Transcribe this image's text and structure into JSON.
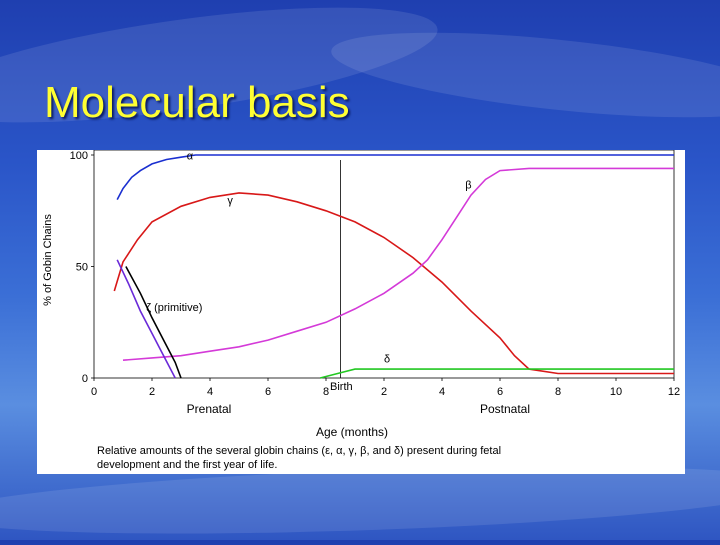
{
  "slide": {
    "title": "Molecular basis"
  },
  "chart_data": {
    "type": "line",
    "xlabel": "Age (months)",
    "ylabel": "% of Gobin Chains",
    "x_ticks": [
      "0",
      "2",
      "4",
      "6",
      "8",
      "2",
      "4",
      "6",
      "8",
      "10",
      "12"
    ],
    "y_ticks": [
      "0",
      "50",
      "100"
    ],
    "xlim": [
      0,
      20
    ],
    "ylim": [
      0,
      100
    ],
    "period_labels": [
      "Prenatal",
      "Postnatal"
    ],
    "birth_label": "Birth",
    "caption_line1": "Relative amounts of the several globin chains (ε, α, γ, β, and δ) present during fetal",
    "caption_line2": "development and the first year of life.",
    "series": [
      {
        "name": "α",
        "color": "#1a2fd0",
        "x": [
          0.8,
          1.0,
          1.3,
          1.6,
          2.0,
          2.5,
          3.0,
          3.5,
          4.0,
          6.0,
          8.0,
          12.0,
          16.0,
          20.0
        ],
        "y": [
          80,
          85,
          90,
          93,
          96,
          98,
          99,
          100,
          100,
          100,
          100,
          100,
          100,
          100
        ]
      },
      {
        "name": "γ",
        "color": "#d81818",
        "x": [
          0.7,
          1.0,
          1.5,
          2.0,
          3.0,
          4.0,
          5.0,
          6.0,
          7.0,
          8.0,
          9.0,
          10.0,
          11.0,
          12.0,
          13.0,
          14.0,
          14.5,
          15.0,
          16.0,
          18.0,
          20.0
        ],
        "y": [
          39,
          52,
          62,
          70,
          77,
          81,
          83,
          82,
          79,
          75,
          70,
          63,
          54,
          43,
          30,
          18,
          10,
          4,
          2,
          2,
          2
        ]
      },
      {
        "name": "β",
        "color": "#d43ad8",
        "x": [
          1.0,
          2.0,
          3.0,
          4.0,
          5.0,
          6.0,
          7.0,
          8.0,
          9.0,
          10.0,
          11.0,
          11.5,
          12.0,
          12.5,
          13.0,
          13.5,
          14.0,
          15.0,
          16.0,
          18.0,
          20.0
        ],
        "y": [
          8,
          9,
          10,
          12,
          14,
          17,
          21,
          25,
          31,
          38,
          47,
          53,
          62,
          72,
          82,
          89,
          93,
          94,
          94,
          94,
          94
        ]
      },
      {
        "name": "δ",
        "color": "#22c822",
        "x": [
          7.8,
          8.4,
          9.0,
          10.0,
          12.0,
          14.0,
          16.0,
          18.0,
          20.0
        ],
        "y": [
          0,
          2,
          4,
          4,
          4,
          4,
          4,
          4,
          4
        ]
      },
      {
        "name": "ζ (primitive)",
        "color": "#6a2ad8",
        "x": [
          0.8,
          1.2,
          1.6,
          2.0,
          2.4,
          2.8
        ],
        "y": [
          53,
          42,
          30,
          20,
          10,
          0
        ]
      },
      {
        "name": "ε",
        "color": "#000000",
        "x": [
          1.1,
          1.6,
          2.0,
          2.4,
          2.8,
          3.0
        ],
        "y": [
          50,
          38,
          27,
          17,
          7,
          0
        ]
      }
    ],
    "annotations": [
      {
        "text": "α",
        "x": 3.2,
        "y": 98
      },
      {
        "text": "γ",
        "x": 4.6,
        "y": 78
      },
      {
        "text": "β",
        "x": 12.8,
        "y": 85
      },
      {
        "text": "δ",
        "x": 10.0,
        "y": 7
      },
      {
        "text": "ζ (primitive)",
        "x": 1.8,
        "y": 30
      }
    ]
  }
}
